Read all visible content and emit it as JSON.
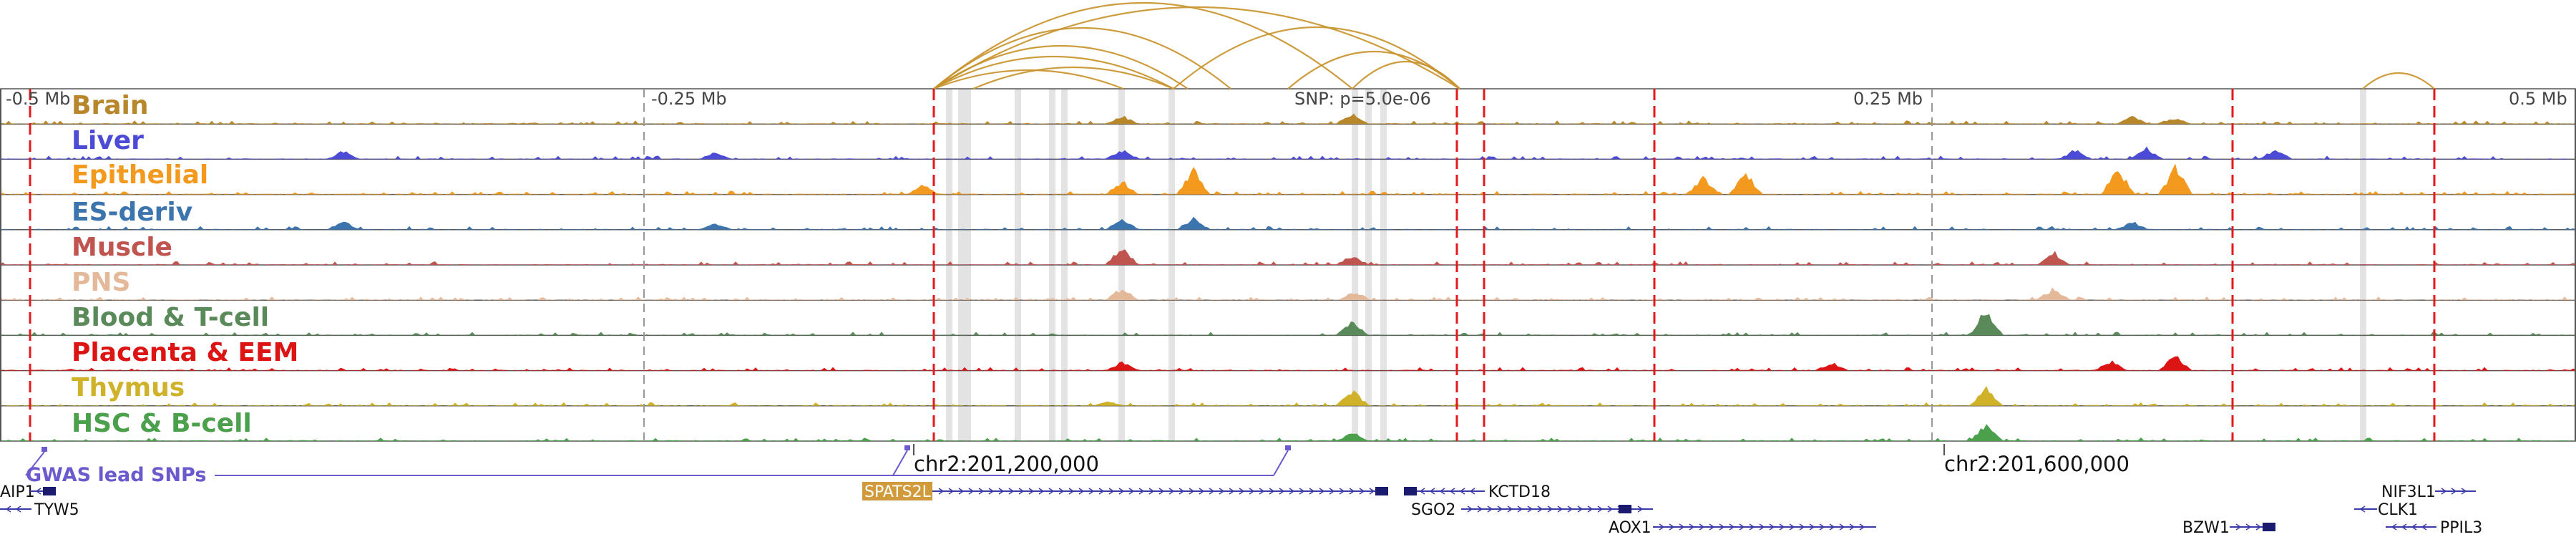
{
  "axis": {
    "ticks": [
      {
        "label": "-0.5 Mb"
      },
      {
        "label": "-0.25 Mb"
      },
      {
        "label": "SNP: p=5.0e-06"
      },
      {
        "label": "0.25 Mb"
      },
      {
        "label": "0.5 Mb"
      }
    ],
    "coordinates": [
      {
        "label": "chr2:201,200,000"
      },
      {
        "label": "chr2:201,600,000"
      }
    ]
  },
  "tracks": [
    {
      "name": "Brain",
      "color": "#b8862b"
    },
    {
      "name": "Liver",
      "color": "#4b4bd6"
    },
    {
      "name": "Epithelial",
      "color": "#f39a1e"
    },
    {
      "name": "ES-deriv",
      "color": "#3c74ad"
    },
    {
      "name": "Muscle",
      "color": "#c0544f"
    },
    {
      "name": "PNS",
      "color": "#e3b99a"
    },
    {
      "name": "Blood & T-cell",
      "color": "#5a8a5a"
    },
    {
      "name": "Placenta & EEM",
      "color": "#dd1414"
    },
    {
      "name": "Thymus",
      "color": "#cfb22a"
    },
    {
      "name": "HSC & B-cell",
      "color": "#4ba04b"
    }
  ],
  "gwas": {
    "label": "GWAS lead SNPs",
    "color": "#6a5acd"
  },
  "genes": [
    {
      "name": "AIP1"
    },
    {
      "name": "TYW5"
    },
    {
      "name": "SPATS2L",
      "highlight_color": "#d19a3a"
    },
    {
      "name": "KCTD18"
    },
    {
      "name": "SGO2"
    },
    {
      "name": "AOX1"
    },
    {
      "name": "BZW1"
    },
    {
      "name": "NIF3L1"
    },
    {
      "name": "CLK1"
    },
    {
      "name": "PPIL3"
    }
  ],
  "colors": {
    "loop": "#c8922a",
    "boundary": "#e31a1c",
    "highlight": "#cccccc",
    "gene": "#3a3aa8",
    "exon": "#1a1a6e",
    "frame": "#555555"
  }
}
